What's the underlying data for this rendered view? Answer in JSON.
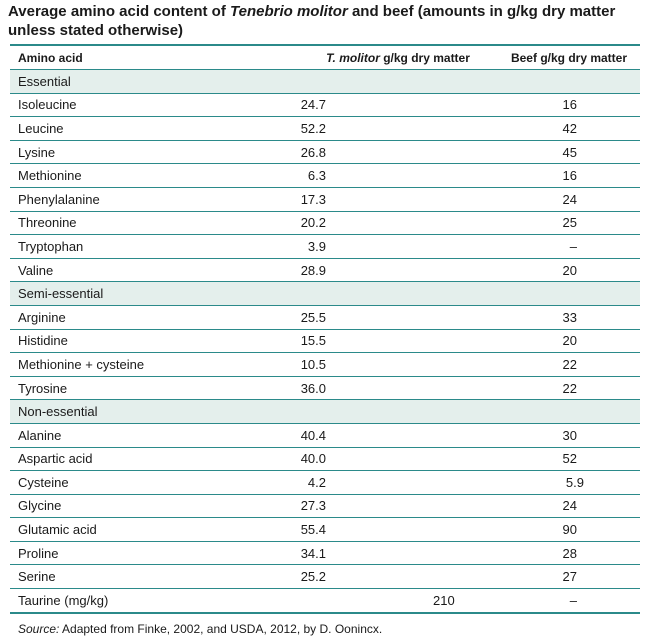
{
  "title": {
    "part1": "Average amino acid content of ",
    "species": "Tenebrio molitor",
    "part2": " and beef (amounts in g/kg dry matter unless stated otherwise)"
  },
  "table": {
    "headers": {
      "amino_acid": "Amino acid",
      "tm_species": "T. molitor",
      "tm_unit": " g/kg dry matter",
      "beef": "Beef g/kg dry matter"
    },
    "rows": [
      {
        "section": "Essential"
      },
      {
        "name": "Isoleucine",
        "tm": "24.7",
        "beef": "16"
      },
      {
        "name": "Leucine",
        "tm": "52.2",
        "beef": "42"
      },
      {
        "name": "Lysine",
        "tm": "26.8",
        "beef": "45"
      },
      {
        "name": "Methionine",
        "tm": "6.3",
        "beef": "16"
      },
      {
        "name": "Phenylalanine",
        "tm": "17.3",
        "beef": "24"
      },
      {
        "name": "Threonine",
        "tm": "20.2",
        "beef": "25"
      },
      {
        "name": "Tryptophan",
        "tm": "3.9",
        "beef": "–"
      },
      {
        "name": "Valine",
        "tm": "28.9",
        "beef": "20"
      },
      {
        "section": "Semi-essential"
      },
      {
        "name": "Arginine",
        "tm": "25.5",
        "beef": "33"
      },
      {
        "name": "Histidine",
        "tm": "15.5",
        "beef": "20"
      },
      {
        "name": "Methionine + cysteine",
        "tm": "10.5",
        "beef": "22"
      },
      {
        "name": "Tyrosine",
        "tm": "36.0",
        "beef": "22"
      },
      {
        "section": "Non-essential"
      },
      {
        "name": "Alanine",
        "tm": "40.4",
        "beef": "30"
      },
      {
        "name": "Aspartic acid",
        "tm": "40.0",
        "beef": "52"
      },
      {
        "name": "Cysteine",
        "tm": "4.2",
        "beef": "5.9"
      },
      {
        "name": "Glycine",
        "tm": "27.3",
        "beef": "24"
      },
      {
        "name": "Glutamic acid",
        "tm": "55.4",
        "beef": "90"
      },
      {
        "name": "Proline",
        "tm": "34.1",
        "beef": "28"
      },
      {
        "name": "Serine",
        "tm": "25.2",
        "beef": "27"
      },
      {
        "name": "Taurine (mg/kg)",
        "tm": "210",
        "beef": "–"
      }
    ]
  },
  "source": {
    "label": "Source:",
    "text": " Adapted from Finke, 2002, and USDA, 2012, by D. Oonincx."
  }
}
